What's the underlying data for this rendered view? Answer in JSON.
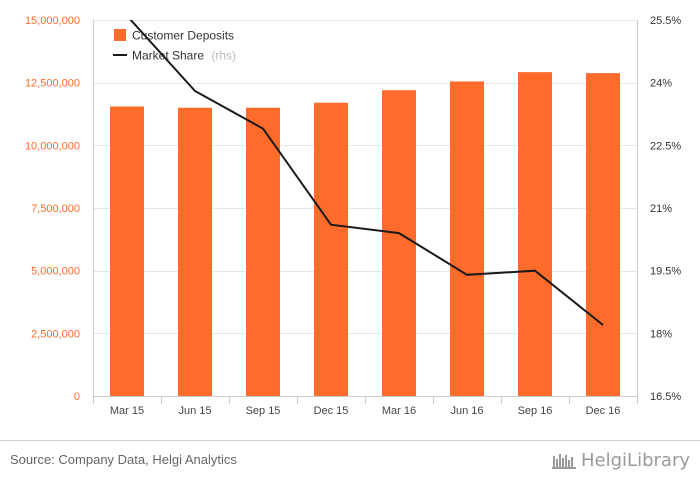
{
  "chart_data": {
    "type": "bar+line",
    "categories": [
      "Mar 15",
      "Jun 15",
      "Sep 15",
      "Dec 15",
      "Mar 16",
      "Jun 16",
      "Sep 16",
      "Dec 16"
    ],
    "series": [
      {
        "name": "Customer Deposits",
        "type": "bar",
        "axis": "left",
        "values": [
          11550000,
          11500000,
          11500000,
          11700000,
          12200000,
          12550000,
          12920000,
          12880000
        ]
      },
      {
        "name": "Market Share",
        "legend_suffix": "(rhs)",
        "type": "line",
        "axis": "right",
        "values": [
          25.6,
          23.8,
          22.9,
          20.6,
          20.4,
          19.4,
          19.5,
          18.2
        ]
      }
    ],
    "y_left": {
      "lim": [
        0,
        15000000
      ],
      "ticks": [
        "0",
        "2,500,000",
        "5,000,000",
        "7,500,000",
        "10,000,000",
        "12,500,000",
        "15,000,000"
      ],
      "tick_values": [
        0,
        2500000,
        5000000,
        7500000,
        10000000,
        12500000,
        15000000
      ]
    },
    "y_right": {
      "lim": [
        16.5,
        25.5
      ],
      "ticks": [
        "16.5%",
        "18%",
        "19.5%",
        "21%",
        "22.5%",
        "24%",
        "25.5%"
      ],
      "tick_values": [
        16.5,
        18,
        19.5,
        21,
        22.5,
        24,
        25.5
      ]
    },
    "grid": true,
    "legend_position": "top-left",
    "colors": {
      "bars": "#ff6b2b",
      "line": "#1a1a1a",
      "left_axis_text": "#ff6b2b",
      "right_axis_text": "#333333",
      "grid": "#e6e6e6",
      "x_text": "#444444"
    }
  },
  "footer": {
    "source": "Source: Company Data, Helgi Analytics",
    "brand": "HelgiLibrary"
  }
}
